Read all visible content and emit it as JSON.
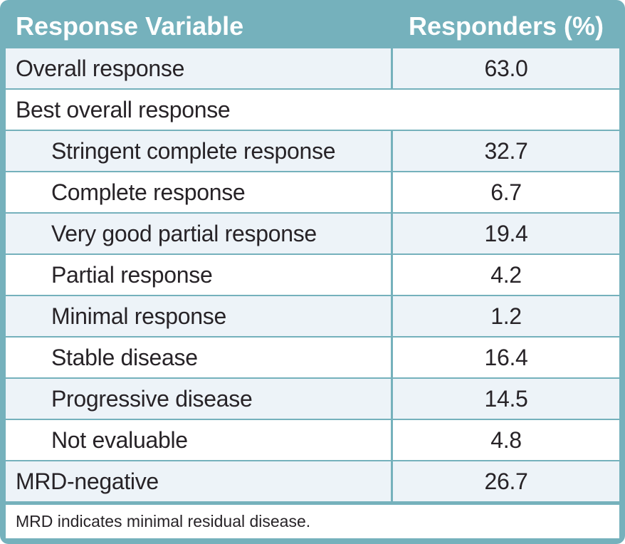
{
  "table": {
    "header": {
      "col1": "Response Variable",
      "col2": "Responders (%)"
    },
    "rows": [
      {
        "label": "Overall response",
        "value": "63.0",
        "indent": false,
        "shaded": true,
        "full_width": false
      },
      {
        "label": "Best overall response",
        "value": "",
        "indent": false,
        "shaded": false,
        "full_width": true
      },
      {
        "label": "Stringent complete response",
        "value": "32.7",
        "indent": true,
        "shaded": true,
        "full_width": false
      },
      {
        "label": "Complete response",
        "value": "6.7",
        "indent": true,
        "shaded": false,
        "full_width": false
      },
      {
        "label": "Very good partial response",
        "value": "19.4",
        "indent": true,
        "shaded": true,
        "full_width": false
      },
      {
        "label": "Partial response",
        "value": "4.2",
        "indent": true,
        "shaded": false,
        "full_width": false
      },
      {
        "label": "Minimal response",
        "value": "1.2",
        "indent": true,
        "shaded": true,
        "full_width": false
      },
      {
        "label": "Stable disease",
        "value": "16.4",
        "indent": true,
        "shaded": false,
        "full_width": false
      },
      {
        "label": "Progressive disease",
        "value": "14.5",
        "indent": true,
        "shaded": true,
        "full_width": false
      },
      {
        "label": "Not evaluable",
        "value": "4.8",
        "indent": true,
        "shaded": false,
        "full_width": false
      },
      {
        "label": "MRD-negative",
        "value": "26.7",
        "indent": false,
        "shaded": true,
        "full_width": false
      }
    ],
    "footnote": "MRD indicates minimal residual disease."
  },
  "colors": {
    "accent_teal": "#75b1bc",
    "row_shade": "#edf3f8",
    "row_plain": "#ffffff",
    "header_text": "#ffffff",
    "body_text": "#272327"
  },
  "chart_data": {
    "type": "table",
    "title": "",
    "columns": [
      "Response Variable",
      "Responders (%)"
    ],
    "rows": [
      [
        "Overall response",
        63.0
      ],
      [
        "Best overall response",
        null
      ],
      [
        "Stringent complete response",
        32.7
      ],
      [
        "Complete response",
        6.7
      ],
      [
        "Very good partial response",
        19.4
      ],
      [
        "Partial response",
        4.2
      ],
      [
        "Minimal response",
        1.2
      ],
      [
        "Stable disease",
        16.4
      ],
      [
        "Progressive disease",
        14.5
      ],
      [
        "Not evaluable",
        4.8
      ],
      [
        "MRD-negative",
        26.7
      ]
    ],
    "footnote": "MRD indicates minimal residual disease.",
    "layout_hints": {
      "indented_rows": [
        2,
        3,
        4,
        5,
        6,
        7,
        8,
        9
      ],
      "full_width_rows": [
        1
      ],
      "shaded_rows": [
        0,
        2,
        4,
        6,
        8,
        10
      ],
      "value_alignment": "center",
      "grid": "teal borders, rounded outer frame"
    }
  }
}
